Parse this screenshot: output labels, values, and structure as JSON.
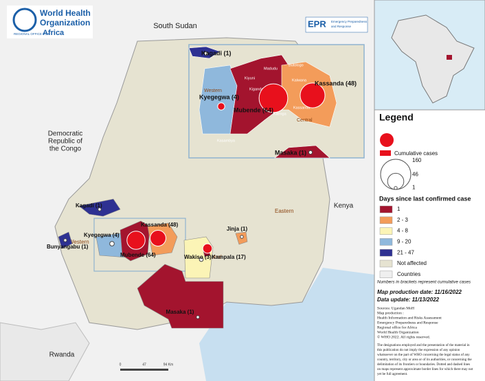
{
  "header": {
    "org_line1": "World Health",
    "org_line2": "Organization",
    "region_prefix": "REGIONAL OFFICE FOR",
    "region": "Africa",
    "epr": "EPR",
    "epr_sub1": "Emergency Preparedness",
    "epr_sub2": "and Response"
  },
  "map": {
    "countries": [
      "South Sudan",
      "Democratic",
      "Republic of",
      "the Congo",
      "Kenya",
      "Rwanda"
    ],
    "regions": [
      "Western",
      "Central",
      "Eastern"
    ],
    "districts": [
      {
        "label": "Kagadi (1)",
        "cases": 1,
        "color": "#2e3192"
      },
      {
        "label": "Bunyangabu (1)",
        "cases": 1,
        "color": "#2e3192"
      },
      {
        "label": "Kyegegwa (4)",
        "cases": 4,
        "color": "#8fb8dc"
      },
      {
        "label": "Mubende (64)",
        "cases": 64,
        "color": "#a3142e"
      },
      {
        "label": "Kassanda (48)",
        "cases": 48,
        "color": "#f39c5a"
      },
      {
        "label": "Wakiso (3)",
        "cases": 3,
        "color": "#fbf4b6"
      },
      {
        "label": "Kampala (17)",
        "cases": 17,
        "color": "#a3142e"
      },
      {
        "label": "Jinja (1)",
        "cases": 1,
        "color": "#f39c5a"
      },
      {
        "label": "Masaka (1)",
        "cases": 1,
        "color": "#a3142e"
      }
    ],
    "inset_districts": [
      {
        "label": "Kagadi (1)",
        "cases": 1,
        "color": "#2e3192"
      },
      {
        "label": "Kyegegwa (4)",
        "cases": 4,
        "color": "#8fb8dc"
      },
      {
        "label": "Mubende (64)",
        "cases": 64,
        "color": "#a3142e"
      },
      {
        "label": "Kassanda (48)",
        "cases": 48,
        "color": "#f39c5a"
      },
      {
        "label": "Masaka (1)",
        "cases": 1,
        "color": "#a3142e"
      }
    ],
    "inset_places": [
      "Western",
      "Central",
      "Kasambya",
      "Kiyuni",
      "Madudu",
      "Kalwana",
      "Kassanda",
      "Kiganda",
      "Kitenga",
      "Butologo"
    ],
    "scale": [
      "0",
      "47",
      "94 Km"
    ]
  },
  "legend": {
    "title": "Legend",
    "cases_label": "Cumulative cases",
    "sizes": [
      160,
      46,
      1
    ],
    "days_title": "Days since last confirmed case",
    "classes": [
      {
        "label": "1",
        "color": "#a3142e"
      },
      {
        "label": "2 - 3",
        "color": "#f39c5a"
      },
      {
        "label": "4 - 8",
        "color": "#fbf4b6"
      },
      {
        "label": "9 - 20",
        "color": "#8fb8dc"
      },
      {
        "label": "21 - 47",
        "color": "#2e3192"
      },
      {
        "label": "Not affected",
        "color": "#e6e3d1"
      },
      {
        "label": "Countries",
        "color": "#efefef"
      }
    ]
  },
  "notes": {
    "brackets": "Numbers in brackets represent cumulative cases",
    "production": "Map production date: 11/16/2022",
    "update": "Data update: 11/13/2022",
    "sources": [
      "Sources: Ugandan MoH",
      "Map production :",
      "Health Information and Risks Assessment",
      "Emergency Preparedness and Response",
      "Regional office for Africa",
      "World Health Organization",
      "© WHO 2022. All rights reserved."
    ],
    "disclaimer": [
      "The designations employed and the presentation of the material in",
      "this publication do not imply the expression of any opinion",
      "whatsoever on the part of WHO concerning the legal status of any",
      "country, territory, city or area or of its authorities, or concerning the",
      "delimitation of its frontiers or boundaries. Dotted and dashed lines",
      "on maps represent approximate border lines for which there may not",
      "yet be full agreement."
    ]
  }
}
